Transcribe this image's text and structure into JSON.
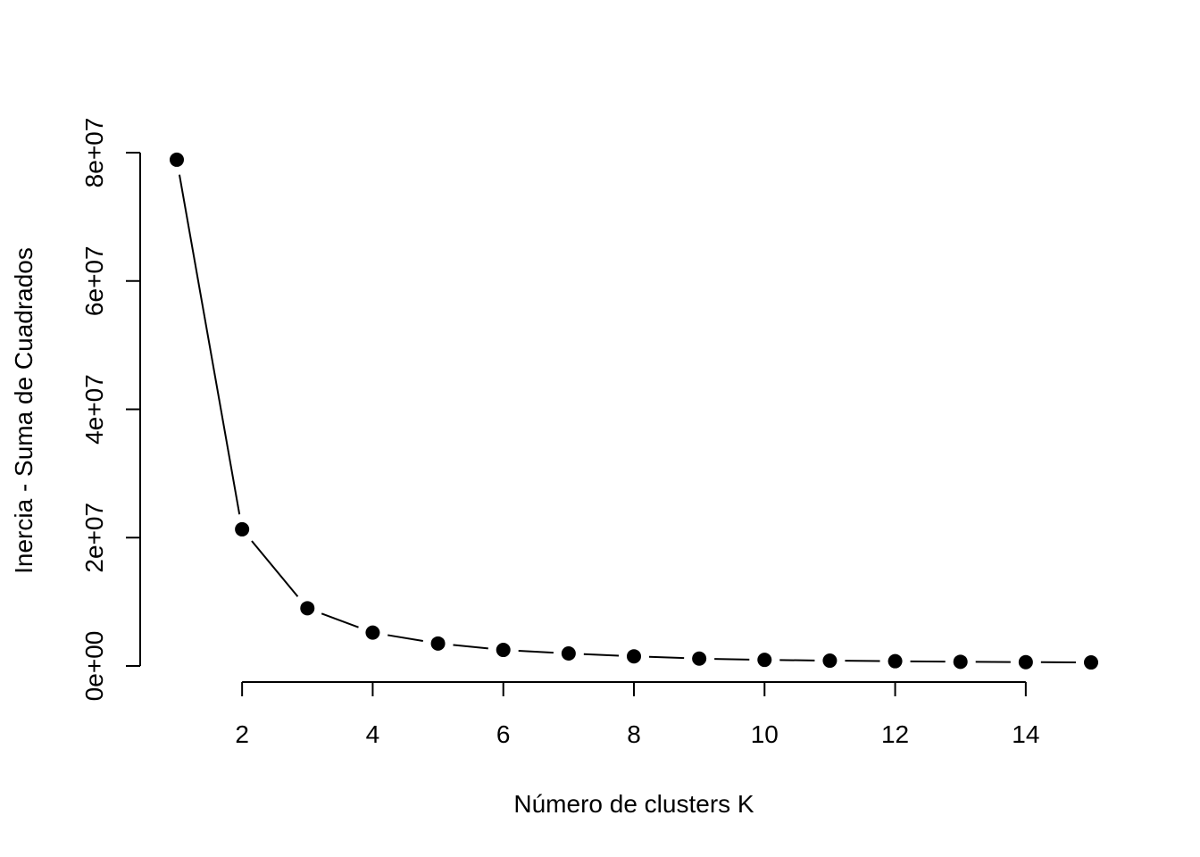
{
  "chart_data": {
    "type": "line",
    "title": "",
    "xlabel": "Número de clusters K",
    "ylabel": "Inercia - Suma de Cuadrados",
    "x": [
      1,
      2,
      3,
      4,
      5,
      6,
      7,
      8,
      9,
      10,
      11,
      12,
      13,
      14,
      15
    ],
    "series": [
      {
        "values": [
          78900000,
          21300000,
          9000000,
          5200000,
          3500000,
          2500000,
          1950000,
          1500000,
          1150000,
          950000,
          830000,
          740000,
          650000,
          600000,
          550000
        ]
      }
    ],
    "xlim": [
      1,
      15
    ],
    "ylim": [
      0,
      80000000
    ],
    "x_ticks": [
      2,
      4,
      6,
      8,
      10,
      12,
      14
    ],
    "x_tick_labels": [
      "2",
      "4",
      "6",
      "8",
      "10",
      "12",
      "14"
    ],
    "y_ticks": [
      0,
      20000000,
      40000000,
      60000000,
      80000000
    ],
    "y_tick_labels": [
      "0e+00",
      "2e+07",
      "4e+07",
      "6e+07",
      "8e+07"
    ],
    "grid": false,
    "legend": "none",
    "marker": "filled-circle",
    "line_style": "overplotted-both",
    "colors": {
      "line": "#000000",
      "marker": "#000000",
      "background": "#ffffff"
    }
  }
}
